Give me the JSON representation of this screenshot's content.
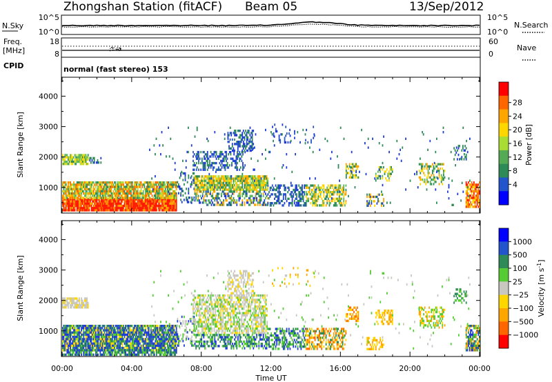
{
  "header": {
    "station": "Zhongshan Station (fitACF)",
    "beam": "Beam 05",
    "date": "13/Sep/2012"
  },
  "nsky_panel": {
    "left_label": "N.Sky",
    "right_label": "N.Search",
    "left_ticks": [
      "10^5",
      "10^0"
    ],
    "right_ticks": [
      "10^5",
      "10^0"
    ]
  },
  "freq_panel": {
    "left_label_1": "Freq.",
    "left_label_2": "[MHz]",
    "left_ticks": [
      "18",
      "8"
    ],
    "right_ticks": [
      "60",
      "0"
    ],
    "right_label": "Nave",
    "cpid_label": "CPID",
    "cpid_value": "normal (fast stereo) 153"
  },
  "chart_data": [
    {
      "type": "heatmap",
      "title": "",
      "xlabel": "",
      "ylabel": "Slant Range [km]",
      "xlim": [
        0,
        24
      ],
      "ylim": [
        180,
        4600
      ],
      "y_ticks": [
        "1000",
        "2000",
        "3000",
        "4000"
      ],
      "colorbar": {
        "label": "Power [dB]",
        "ticks": [
          "4",
          "8",
          "12",
          "16",
          "20",
          "24",
          "28"
        ],
        "colors": [
          "#0000ff",
          "#2255cc",
          "#2e8b57",
          "#55aa55",
          "#aadd33",
          "#ffd700",
          "#ffa500",
          "#ff6600",
          "#ff0000"
        ]
      }
    },
    {
      "type": "heatmap",
      "title": "",
      "xlabel": "Time UT",
      "ylabel": "Slant Range [km]",
      "xlim": [
        0,
        24
      ],
      "ylim": [
        180,
        4600
      ],
      "y_ticks": [
        "1000",
        "2000",
        "3000",
        "4000"
      ],
      "x_ticks": [
        "00:00",
        "04:00",
        "08:00",
        "12:00",
        "16:00",
        "20:00",
        "00:00"
      ],
      "colorbar": {
        "label": "Velocity [m s^-1]",
        "label_main": "Velocity",
        "label_unit": "[m s",
        "label_exp": "-1",
        "label_close": "]",
        "ticks": [
          "1000",
          "500",
          "100",
          "25",
          "−25",
          "−100",
          "−500",
          "−1000"
        ],
        "colors": [
          "#0000ff",
          "#2255cc",
          "#2e8b57",
          "#55cc33",
          "#c8c8c0",
          "#ffd700",
          "#ffa500",
          "#ff6600",
          "#ff0000"
        ]
      }
    }
  ]
}
